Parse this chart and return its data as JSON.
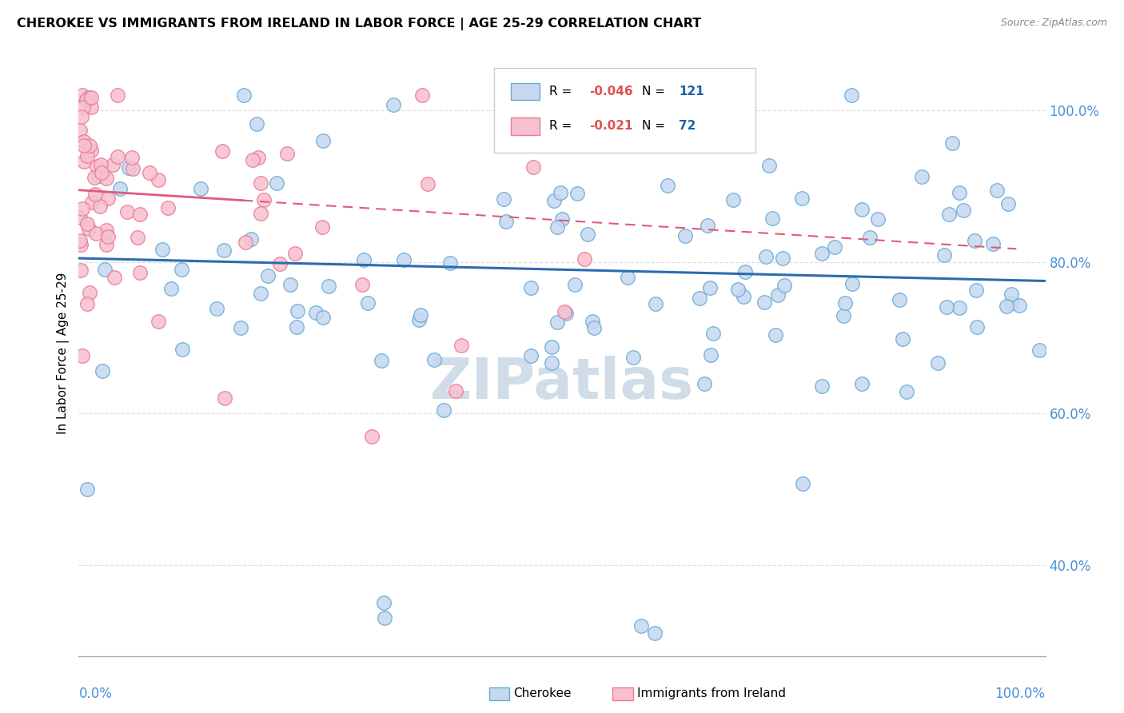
{
  "title": "CHEROKEE VS IMMIGRANTS FROM IRELAND IN LABOR FORCE | AGE 25-29 CORRELATION CHART",
  "source": "Source: ZipAtlas.com",
  "ylabel": "In Labor Force | Age 25-29",
  "right_ytick_vals": [
    0.4,
    0.6,
    0.8,
    1.0
  ],
  "right_ytick_labels": [
    "40.0%",
    "60.0%",
    "80.0%",
    "100.0%"
  ],
  "blue_R": "-0.046",
  "blue_N": "121",
  "pink_R": "-0.021",
  "pink_N": "72",
  "blue_fill": "#c5d8f0",
  "blue_edge": "#6aaad4",
  "pink_fill": "#f7c0ce",
  "pink_edge": "#e87a96",
  "blue_line_color": "#2b6cb0",
  "pink_line_color": "#e05a7a",
  "label_color": "#4a90d9",
  "watermark": "ZIPatlas",
  "watermark_color": "#d0dce8",
  "bg_color": "#ffffff",
  "xlim": [
    0,
    1.0
  ],
  "ylim": [
    0.28,
    1.08
  ],
  "grid_color": "#e0e0e0",
  "legend_R_color": "#e05050",
  "legend_N_color": "#1a5fa8"
}
